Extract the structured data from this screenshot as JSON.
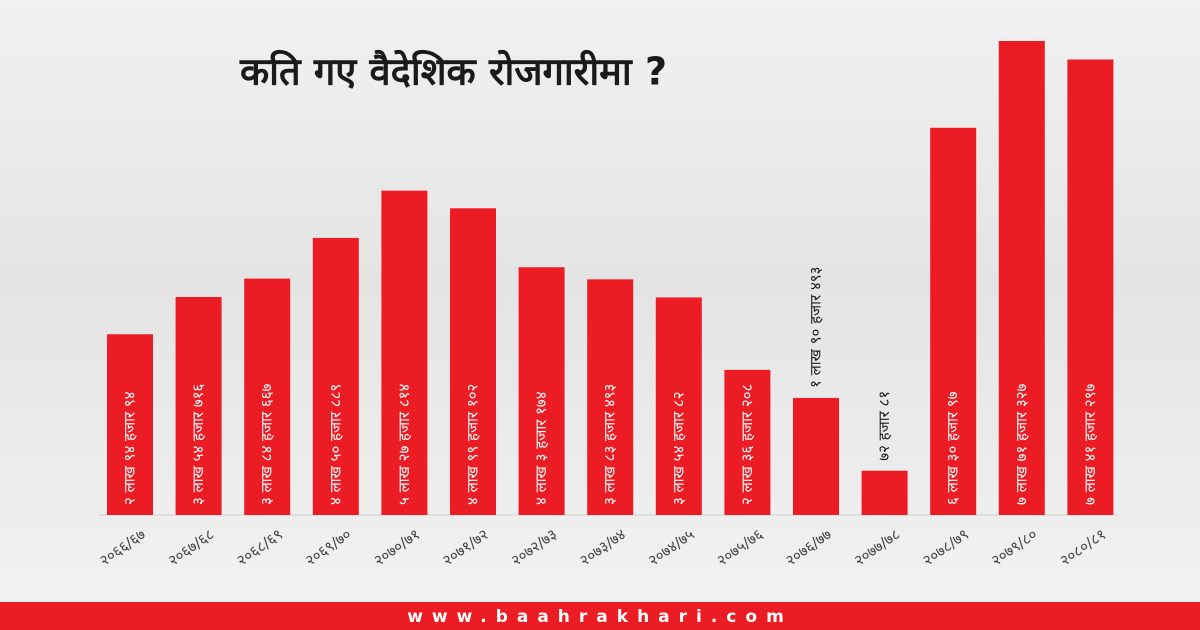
{
  "chart_data": {
    "type": "bar",
    "title": "कति गए वैदेशिक रोजगारीमा ?",
    "categories": [
      "२०६६/६७",
      "२०६७/६८",
      "२०६८/६९",
      "२०६९/७०",
      "२०७०/७१",
      "२०७१/७२",
      "२०७२/७३",
      "२०७३/७४",
      "२०७४/७५",
      "२०७५/७६",
      "२०७६/७७",
      "२०७७/७८",
      "२०७८/७९",
      "२०७९/८०",
      "२०८०/८१"
    ],
    "values": [
      294094,
      354716,
      384667,
      450889,
      527814,
      499102,
      403174,
      383493,
      354082,
      236208,
      190493,
      72081,
      630097,
      771327,
      741297
    ],
    "value_labels": [
      "२ लाख ९४ हजार ९४",
      "३ लाख ५४ हजार ७१६",
      "३ लाख ८४ हजार ६६७",
      "४ लाख ५० हजार ८८९",
      "५ लाख २७ हजार ८१४",
      "४ लाख ९९ हजार १०२",
      "४ लाख ३ हजार १७४",
      "३ लाख ८३ हजार ४९३",
      "३ लाख ५४ हजार ८२",
      "२ लाख ३६ हजार २०८",
      "१ लाख ९० हजार ४९३",
      "७२ हजार ८१",
      "६ लाख ३० हजार ९७",
      "७ लाख ७१ हजार ३२७",
      "७ लाख ४१ हजार २९७"
    ],
    "color": "#ec1c24",
    "footer": "www.baahrakhari.com"
  }
}
